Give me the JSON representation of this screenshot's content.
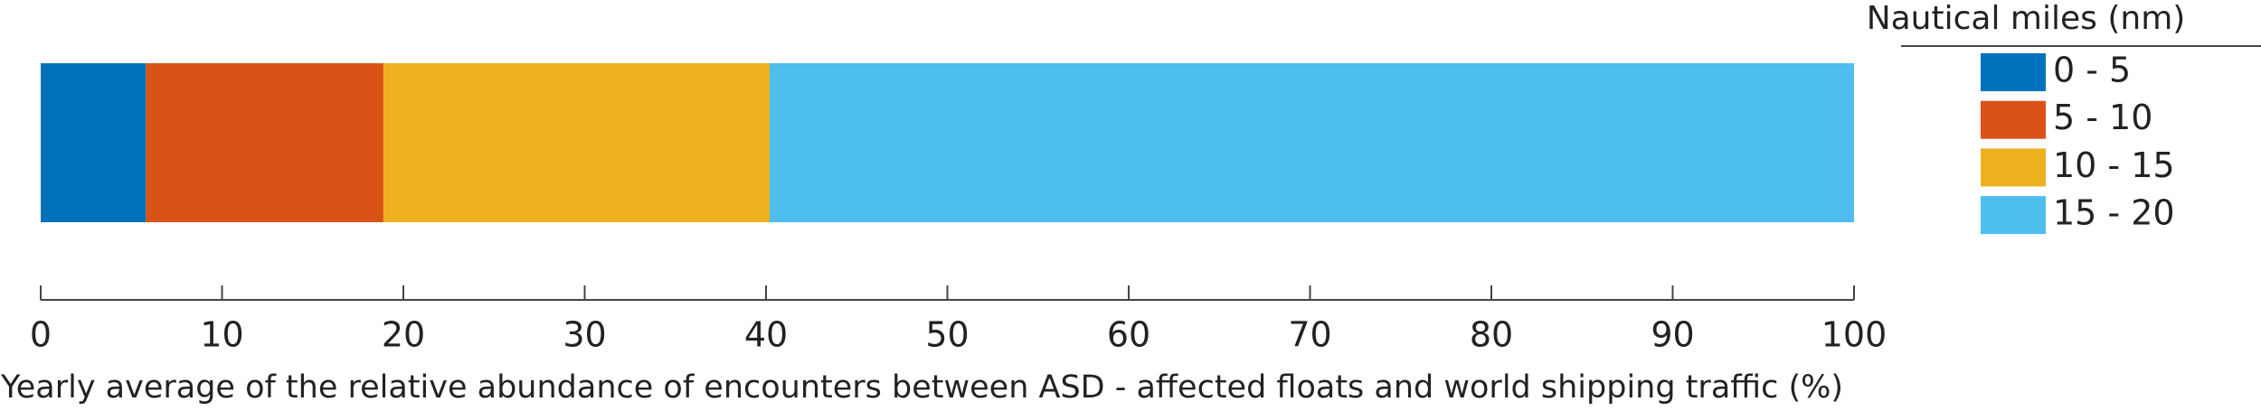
{
  "chart_data": {
    "type": "stacked_barh",
    "xlabel": "Yearly average of the relative abundance of encounters between ASD - affected floats and world shipping traffic (%)",
    "legend_title": "Nautical miles (nm)",
    "legend": "outside-right-top",
    "series": [
      {
        "name": "0 - 5",
        "color": "#0072bd",
        "values": [
          5.8
        ]
      },
      {
        "name": "5 - 10",
        "color": "#d95319",
        "values": [
          13.1
        ]
      },
      {
        "name": "10 - 15",
        "color": "#edb120",
        "values": [
          21.3
        ]
      },
      {
        "name": "15 - 20",
        "color": "#4dbeee",
        "values": [
          59.8
        ]
      }
    ],
    "xlim": [
      0,
      100
    ],
    "xticks": [
      0,
      10,
      20,
      30,
      40,
      50,
      60,
      70,
      80,
      90,
      100
    ]
  }
}
